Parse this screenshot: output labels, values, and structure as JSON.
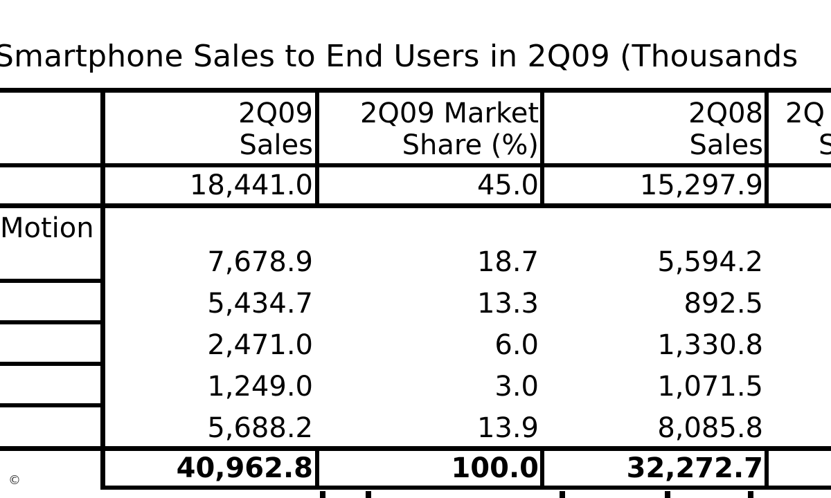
{
  "title": "Smartphone Sales to End Users in 2Q09 (Thousands",
  "header": {
    "col1_line1": "2Q09",
    "col1_line2": "Sales",
    "col2_line1": "2Q09 Market",
    "col2_line2": "Share (%)",
    "col3_line1": "2Q08",
    "col3_line2": "Sales",
    "col4_line1": "2Q",
    "col4_line2": "S"
  },
  "rows": [
    {
      "label": "",
      "sales_2q09": "18,441.0",
      "share_2q09": "45.0",
      "sales_2q08": "15,297.9"
    },
    {
      "label": "Motion",
      "sales_2q09": "7,678.9",
      "share_2q09": "18.7",
      "sales_2q08": "5,594.2"
    },
    {
      "label": "",
      "sales_2q09": "5,434.7",
      "share_2q09": "13.3",
      "sales_2q08": "892.5"
    },
    {
      "label": "",
      "sales_2q09": "2,471.0",
      "share_2q09": "6.0",
      "sales_2q08": "1,330.8"
    },
    {
      "label": "",
      "sales_2q09": "1,249.0",
      "share_2q09": "3.0",
      "sales_2q08": "1,071.5"
    },
    {
      "label": "",
      "sales_2q09": "5,688.2",
      "share_2q09": "13.9",
      "sales_2q08": "8,085.8"
    }
  ],
  "total": {
    "sales_2q09": "40,962.8",
    "share_2q09": "100.0",
    "sales_2q08": "32,272.7"
  },
  "copyright_symbol": "©"
}
